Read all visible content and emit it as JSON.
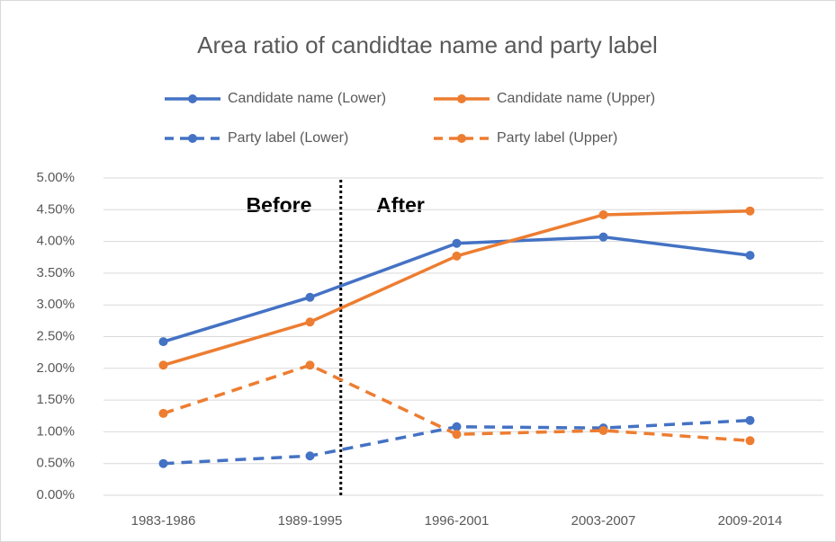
{
  "chart_data": {
    "type": "line",
    "title": "Area ratio of candidtae name and party label",
    "annotations": [
      "Before",
      "After"
    ],
    "categories": [
      "1983-1986",
      "1989-1995",
      "1996-2001",
      "2003-2007",
      "2009-2014"
    ],
    "series": [
      {
        "name": "Candidate name (Lower)",
        "color": "#4472c4",
        "dashed": false,
        "values": [
          2.42,
          3.12,
          3.97,
          4.07,
          3.78
        ]
      },
      {
        "name": "Candidate name (Upper)",
        "color": "#ed7d31",
        "dashed": false,
        "values": [
          2.05,
          2.73,
          3.77,
          4.42,
          4.48
        ]
      },
      {
        "name": "Party label (Lower)",
        "color": "#4472c4",
        "dashed": true,
        "values": [
          0.5,
          0.62,
          1.08,
          1.06,
          1.18
        ]
      },
      {
        "name": "Party label (Upper)",
        "color": "#ed7d31",
        "dashed": true,
        "values": [
          1.29,
          2.05,
          0.96,
          1.02,
          0.86
        ]
      }
    ],
    "ylim": [
      0,
      5
    ],
    "yticks": [
      {
        "value": 0,
        "label": "0.00%"
      },
      {
        "value": 0.5,
        "label": "0.50%"
      },
      {
        "value": 1,
        "label": "1.00%"
      },
      {
        "value": 1.5,
        "label": "1.50%"
      },
      {
        "value": 2,
        "label": "2.00%"
      },
      {
        "value": 2.5,
        "label": "2.50%"
      },
      {
        "value": 3,
        "label": "3.00%"
      },
      {
        "value": 3.5,
        "label": "3.50%"
      },
      {
        "value": 4,
        "label": "4.00%"
      },
      {
        "value": 4.5,
        "label": "4.50%"
      },
      {
        "value": 5,
        "label": "5.00%"
      }
    ],
    "grid": true
  }
}
